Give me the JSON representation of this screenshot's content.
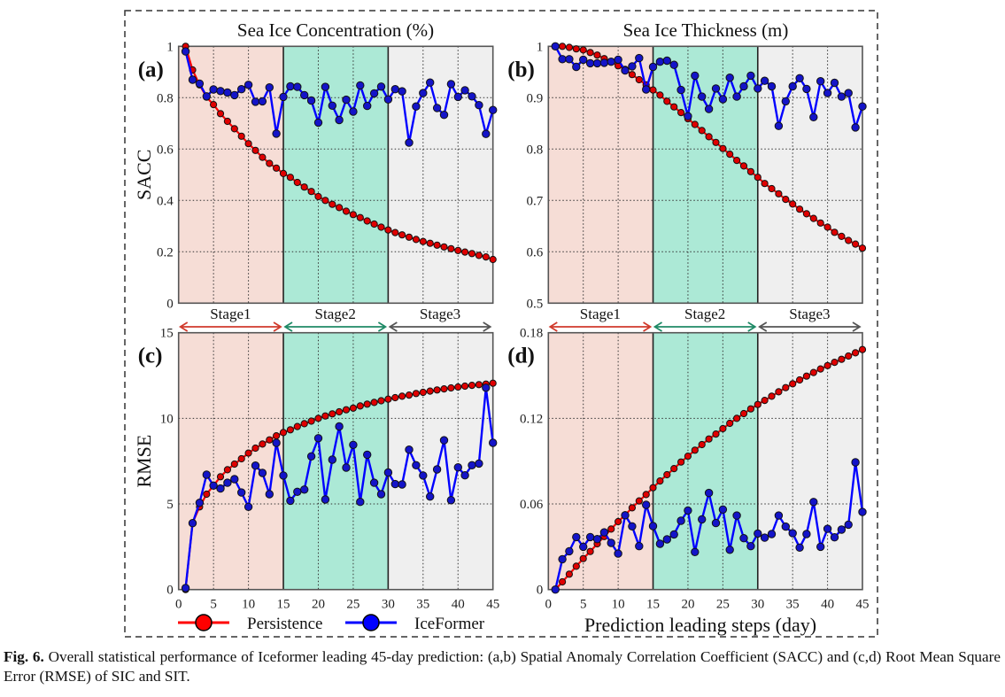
{
  "figure": {
    "caption_label": "Fig. 6.",
    "caption_text": " Overall statistical performance of Iceformer leading 45-day prediction: (a,b) Spatial Anomaly Correlation Coefficient (SACC) and (c,d) Root Mean Square Error (RMSE) of SIC and SIT.",
    "column_titles": [
      "Sea Ice Concentration (%)",
      "Sea Ice Thickness (m)"
    ],
    "x_axis_label": "Prediction leading steps (day)",
    "stage_labels": [
      "Stage1",
      "Stage2",
      "Stage3"
    ],
    "colors": {
      "stage1_bg": "#f6ddd6",
      "stage2_bg": "#ace9d6",
      "stage3_bg": "#efefef",
      "stage1_arrow": "#d03a2c",
      "stage2_arrow": "#1f8a66",
      "stage3_arrow": "#555555",
      "persistence": "#ff0000",
      "iceformer": "#0000ff"
    },
    "legend": [
      {
        "name": "Persistence",
        "color": "#ff0000"
      },
      {
        "name": "IceFormer",
        "color": "#0000ff"
      }
    ]
  },
  "chart_data": [
    {
      "panel": "(a)",
      "type": "line",
      "title": "Sea Ice Concentration (%)",
      "xlabel": "",
      "ylabel": "SACC",
      "xlim": [
        0,
        45
      ],
      "ylim": [
        0,
        1
      ],
      "xticks": [
        0,
        5,
        10,
        15,
        20,
        25,
        30,
        35,
        40,
        45
      ],
      "yticks": [
        0,
        0.2,
        0.4,
        0.6,
        0.8,
        1
      ],
      "ytick_labels": [
        "0",
        "0.2",
        "0.4",
        "0.6",
        "0.8",
        "1"
      ],
      "grid": true,
      "stages": [
        {
          "name": "Stage1",
          "from": 0,
          "to": 15
        },
        {
          "name": "Stage2",
          "from": 15,
          "to": 30
        },
        {
          "name": "Stage3",
          "from": 30,
          "to": 45
        }
      ],
      "x": [
        1,
        2,
        3,
        4,
        5,
        6,
        7,
        8,
        9,
        10,
        11,
        12,
        13,
        14,
        15,
        16,
        17,
        18,
        19,
        20,
        21,
        22,
        23,
        24,
        25,
        26,
        27,
        28,
        29,
        30,
        31,
        32,
        33,
        34,
        35,
        36,
        37,
        38,
        39,
        40,
        41,
        42,
        43,
        44,
        45
      ],
      "series": [
        {
          "name": "Persistence",
          "values": [
            1.0,
            0.908,
            0.85,
            0.802,
            0.773,
            0.738,
            0.708,
            0.679,
            0.65,
            0.621,
            0.595,
            0.568,
            0.544,
            0.526,
            0.505,
            0.49,
            0.47,
            0.452,
            0.435,
            0.415,
            0.4,
            0.385,
            0.372,
            0.358,
            0.345,
            0.333,
            0.32,
            0.308,
            0.296,
            0.285,
            0.275,
            0.266,
            0.257,
            0.248,
            0.24,
            0.233,
            0.226,
            0.219,
            0.212,
            0.205,
            0.199,
            0.193,
            0.186,
            0.18,
            0.17
          ]
        },
        {
          "name": "IceFormer",
          "values": [
            0.98,
            0.87,
            0.855,
            0.805,
            0.832,
            0.826,
            0.82,
            0.81,
            0.833,
            0.85,
            0.784,
            0.786,
            0.84,
            0.66,
            0.803,
            0.844,
            0.842,
            0.81,
            0.789,
            0.703,
            0.842,
            0.769,
            0.713,
            0.792,
            0.746,
            0.848,
            0.768,
            0.817,
            0.843,
            0.793,
            0.833,
            0.825,
            0.625,
            0.766,
            0.818,
            0.859,
            0.76,
            0.733,
            0.853,
            0.803,
            0.829,
            0.805,
            0.771,
            0.659,
            0.752
          ]
        }
      ]
    },
    {
      "panel": "(b)",
      "type": "line",
      "title": "Sea Ice Thickness (m)",
      "xlabel": "",
      "ylabel": "",
      "xlim": [
        0,
        45
      ],
      "ylim": [
        0.5,
        1
      ],
      "xticks": [
        0,
        5,
        10,
        15,
        20,
        25,
        30,
        35,
        40,
        45
      ],
      "yticks": [
        0.5,
        0.6,
        0.7,
        0.8,
        0.9,
        1
      ],
      "ytick_labels": [
        "0.5",
        "0.6",
        "0.7",
        "0.8",
        "0.9",
        "1"
      ],
      "grid": true,
      "stages": [
        {
          "name": "Stage1",
          "from": 0,
          "to": 15
        },
        {
          "name": "Stage2",
          "from": 15,
          "to": 30
        },
        {
          "name": "Stage3",
          "from": 30,
          "to": 45
        }
      ],
      "x": [
        1,
        2,
        3,
        4,
        5,
        6,
        7,
        8,
        9,
        10,
        11,
        12,
        13,
        14,
        15,
        16,
        17,
        18,
        19,
        20,
        21,
        22,
        23,
        24,
        25,
        26,
        27,
        28,
        29,
        30,
        31,
        32,
        33,
        34,
        35,
        36,
        37,
        38,
        39,
        40,
        41,
        42,
        43,
        44,
        45
      ],
      "series": [
        {
          "name": "Persistence",
          "values": [
            1.0,
            1.0,
            0.998,
            0.995,
            0.993,
            0.988,
            0.983,
            0.976,
            0.97,
            0.962,
            0.955,
            0.945,
            0.935,
            0.925,
            0.915,
            0.905,
            0.893,
            0.882,
            0.871,
            0.859,
            0.848,
            0.836,
            0.824,
            0.813,
            0.801,
            0.79,
            0.778,
            0.767,
            0.756,
            0.745,
            0.733,
            0.723,
            0.713,
            0.702,
            0.693,
            0.683,
            0.674,
            0.665,
            0.656,
            0.648,
            0.638,
            0.63,
            0.622,
            0.615,
            0.607
          ]
        },
        {
          "name": "IceFormer",
          "values": [
            1.0,
            0.975,
            0.975,
            0.96,
            0.974,
            0.967,
            0.967,
            0.968,
            0.97,
            0.974,
            0.953,
            0.961,
            0.977,
            0.916,
            0.96,
            0.97,
            0.972,
            0.964,
            0.915,
            0.864,
            0.943,
            0.902,
            0.878,
            0.918,
            0.897,
            0.939,
            0.902,
            0.922,
            0.943,
            0.918,
            0.933,
            0.922,
            0.845,
            0.893,
            0.922,
            0.938,
            0.917,
            0.862,
            0.932,
            0.909,
            0.929,
            0.902,
            0.909,
            0.842,
            0.883
          ]
        }
      ]
    },
    {
      "panel": "(c)",
      "type": "line",
      "title": "",
      "xlabel": "",
      "ylabel": "RMSE",
      "xlim": [
        0,
        45
      ],
      "ylim": [
        0,
        15
      ],
      "xticks": [
        0,
        5,
        10,
        15,
        20,
        25,
        30,
        35,
        40,
        45
      ],
      "yticks": [
        0,
        5,
        10,
        15
      ],
      "ytick_labels": [
        "0",
        "5",
        "10",
        "15"
      ],
      "grid": true,
      "stages": [
        {
          "name": "Stage1",
          "from": 0,
          "to": 15
        },
        {
          "name": "Stage2",
          "from": 15,
          "to": 30
        },
        {
          "name": "Stage3",
          "from": 30,
          "to": 45
        }
      ],
      "x": [
        1,
        2,
        3,
        4,
        5,
        6,
        7,
        8,
        9,
        10,
        11,
        12,
        13,
        14,
        15,
        16,
        17,
        18,
        19,
        20,
        21,
        22,
        23,
        24,
        25,
        26,
        27,
        28,
        29,
        30,
        31,
        32,
        33,
        34,
        35,
        36,
        37,
        38,
        39,
        40,
        41,
        42,
        43,
        44,
        45
      ],
      "series": [
        {
          "name": "Persistence",
          "values": [
            0.0,
            3.9,
            4.83,
            5.57,
            6.07,
            6.59,
            7.0,
            7.33,
            7.64,
            7.97,
            8.26,
            8.5,
            8.74,
            8.98,
            9.17,
            9.33,
            9.52,
            9.69,
            9.84,
            10.0,
            10.14,
            10.26,
            10.38,
            10.5,
            10.6,
            10.72,
            10.83,
            10.93,
            11.03,
            11.12,
            11.21,
            11.29,
            11.36,
            11.45,
            11.52,
            11.59,
            11.66,
            11.72,
            11.78,
            11.83,
            11.88,
            11.93,
            11.97,
            12.0,
            12.05
          ]
        },
        {
          "name": "IceFormer",
          "values": [
            0.09,
            3.88,
            5.07,
            6.71,
            6.07,
            5.9,
            6.24,
            6.45,
            5.67,
            4.83,
            7.24,
            6.81,
            5.57,
            8.57,
            6.66,
            5.19,
            5.71,
            5.84,
            7.78,
            8.84,
            5.26,
            7.59,
            9.53,
            7.12,
            8.45,
            5.12,
            7.88,
            6.24,
            5.57,
            6.84,
            6.16,
            6.14,
            8.17,
            7.26,
            6.66,
            5.43,
            7.02,
            8.72,
            5.22,
            7.14,
            6.67,
            7.26,
            7.36,
            11.79,
            8.57
          ]
        }
      ]
    },
    {
      "panel": "(d)",
      "type": "line",
      "title": "",
      "xlabel": "Prediction leading steps (day)",
      "ylabel": "",
      "xlim": [
        0,
        45
      ],
      "ylim": [
        0,
        0.18
      ],
      "xticks": [
        0,
        5,
        10,
        15,
        20,
        25,
        30,
        35,
        40,
        45
      ],
      "yticks": [
        0,
        0.06,
        0.12,
        0.18
      ],
      "ytick_labels": [
        "0",
        "0.06",
        "0.12",
        "0.18"
      ],
      "grid": true,
      "stages": [
        {
          "name": "Stage1",
          "from": 0,
          "to": 15
        },
        {
          "name": "Stage2",
          "from": 15,
          "to": 30
        },
        {
          "name": "Stage3",
          "from": 30,
          "to": 45
        }
      ],
      "x": [
        1,
        2,
        3,
        4,
        5,
        6,
        7,
        8,
        9,
        10,
        11,
        12,
        13,
        14,
        15,
        16,
        17,
        18,
        19,
        20,
        21,
        22,
        23,
        24,
        25,
        26,
        27,
        28,
        29,
        30,
        31,
        32,
        33,
        34,
        35,
        36,
        37,
        38,
        39,
        40,
        41,
        42,
        43,
        44,
        45
      ],
      "series": [
        {
          "name": "Persistence",
          "values": [
            0.0,
            0.0054,
            0.0108,
            0.0163,
            0.0217,
            0.0267,
            0.0321,
            0.0372,
            0.0424,
            0.0476,
            0.0523,
            0.0573,
            0.0621,
            0.0666,
            0.0714,
            0.0761,
            0.0805,
            0.0848,
            0.0894,
            0.0935,
            0.0977,
            0.1016,
            0.1055,
            0.109,
            0.1128,
            0.1165,
            0.12,
            0.1233,
            0.1266,
            0.1297,
            0.1326,
            0.1355,
            0.1386,
            0.1415,
            0.1442,
            0.1469,
            0.1496,
            0.1521,
            0.1546,
            0.157,
            0.1593,
            0.1614,
            0.1637,
            0.1659,
            0.1682
          ]
        },
        {
          "name": "IceFormer",
          "values": [
            0.0,
            0.0213,
            0.0269,
            0.0368,
            0.03,
            0.0368,
            0.0354,
            0.0401,
            0.0327,
            0.0252,
            0.0521,
            0.0443,
            0.0304,
            0.0594,
            0.0445,
            0.0321,
            0.0352,
            0.0387,
            0.0482,
            0.0554,
            0.0263,
            0.0492,
            0.0677,
            0.0466,
            0.0561,
            0.0279,
            0.0519,
            0.036,
            0.0304,
            0.0393,
            0.0364,
            0.0389,
            0.0519,
            0.0441,
            0.0395,
            0.0294,
            0.0389,
            0.0614,
            0.03,
            0.0426,
            0.0366,
            0.042,
            0.0455,
            0.0892,
            0.0544
          ]
        }
      ]
    }
  ]
}
